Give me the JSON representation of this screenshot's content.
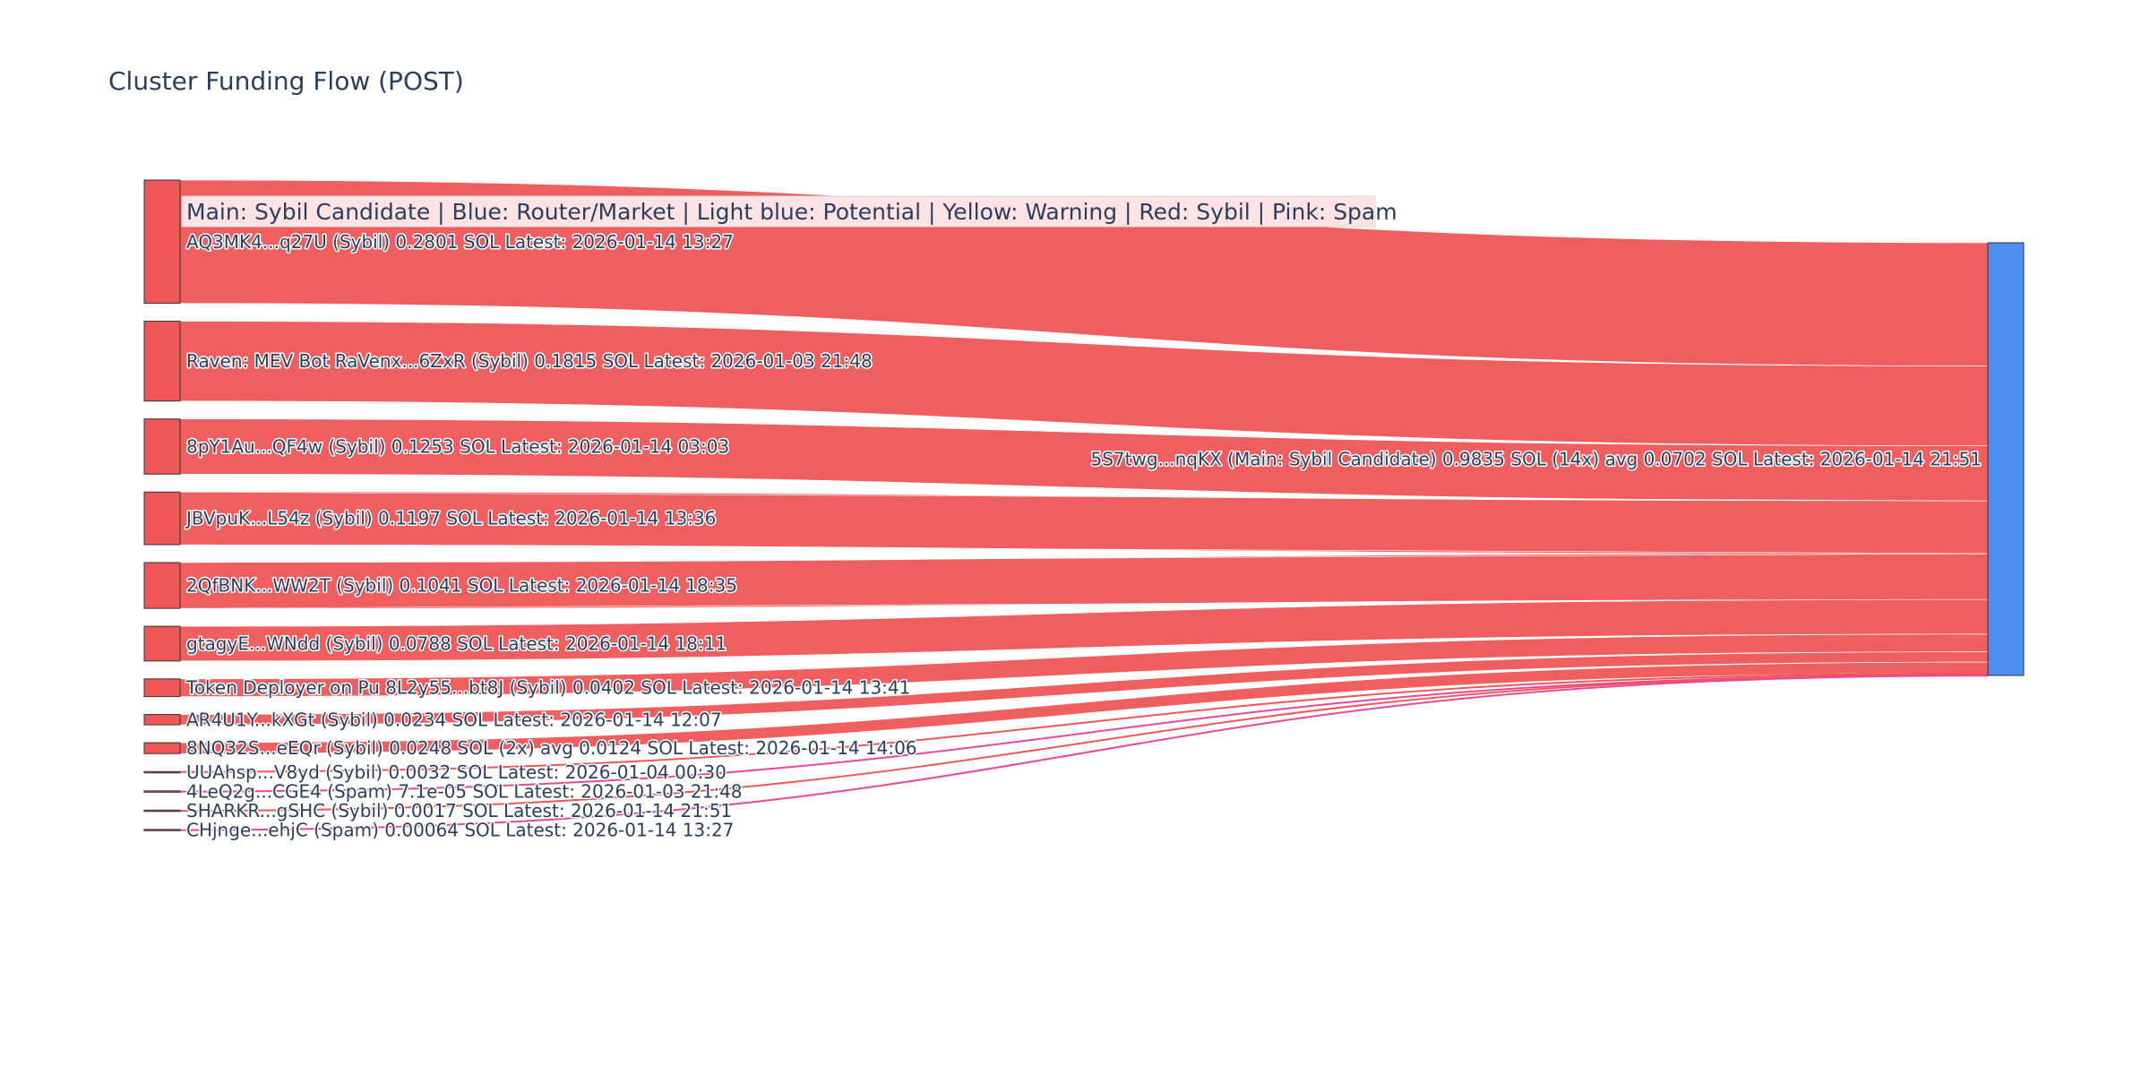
{
  "title": "Cluster Funding Flow (POST)",
  "legend": "Main: Sybil Candidate  |  Blue: Router/Market | Light blue: Potential | Yellow: Warning | Red: Sybil | Pink: Spam",
  "colors": {
    "sybil": "#ef5656",
    "spam": "#e8489a",
    "main": "#4d8ff0",
    "node_border": "#333333",
    "legend_bg": "#fde3e3"
  },
  "chart_data": {
    "type": "sankey",
    "title": "Cluster Funding Flow (POST)",
    "target": {
      "label": "5S7twg...nqKX (Main: Sybil Candidate) 0.9835 SOL (14x) avg 0.0702 SOL Latest: 2026-01-14 21:51",
      "value": 0.9835,
      "category": "Main"
    },
    "sources": [
      {
        "label": "AQ3MK4...q27U (Sybil) 0.2801 SOL Latest: 2026-01-14 13:27",
        "value": 0.2801,
        "category": "Sybil"
      },
      {
        "label": "Raven: MEV Bot RaVenx...6ZxR (Sybil) 0.1815 SOL Latest: 2026-01-03 21:48",
        "value": 0.1815,
        "category": "Sybil"
      },
      {
        "label": "8pY1Au...QF4w (Sybil) 0.1253 SOL Latest: 2026-01-14 03:03",
        "value": 0.1253,
        "category": "Sybil"
      },
      {
        "label": "JBVpuK...L54z (Sybil) 0.1197 SOL Latest: 2026-01-14 13:36",
        "value": 0.1197,
        "category": "Sybil"
      },
      {
        "label": "2QfBNK...WW2T (Sybil) 0.1041 SOL Latest: 2026-01-14 18:35",
        "value": 0.1041,
        "category": "Sybil"
      },
      {
        "label": "gtagyE...WNdd (Sybil) 0.0788 SOL Latest: 2026-01-14 18:11",
        "value": 0.0788,
        "category": "Sybil"
      },
      {
        "label": "Token Deployer on Pu 8L2y55...bt8J (Sybil) 0.0402 SOL Latest: 2026-01-14 13:41",
        "value": 0.0402,
        "category": "Sybil"
      },
      {
        "label": "AR4U1Y...kXGt (Sybil) 0.0234 SOL Latest: 2026-01-14 12:07",
        "value": 0.0234,
        "category": "Sybil"
      },
      {
        "label": "8NQ32S...eEQr (Sybil) 0.0248 SOL (2x) avg 0.0124 SOL Latest: 2026-01-14 14:06",
        "value": 0.0248,
        "category": "Sybil"
      },
      {
        "label": "UUAhsp...V8yd (Sybil) 0.0032 SOL Latest: 2026-01-04 00:30",
        "value": 0.0032,
        "category": "Sybil"
      },
      {
        "label": "4LeQ2g...CGE4 (Spam) 7.1e-05 SOL Latest: 2026-01-03 21:48",
        "value": 7.1e-05,
        "category": "Spam"
      },
      {
        "label": "SHARKR...gSHC (Sybil) 0.0017 SOL Latest: 2026-01-14 21:51",
        "value": 0.0017,
        "category": "Sybil"
      },
      {
        "label": "CHjnge...ehjC (Spam) 0.00064 SOL Latest: 2026-01-14 13:27",
        "value": 0.00064,
        "category": "Spam"
      }
    ]
  }
}
